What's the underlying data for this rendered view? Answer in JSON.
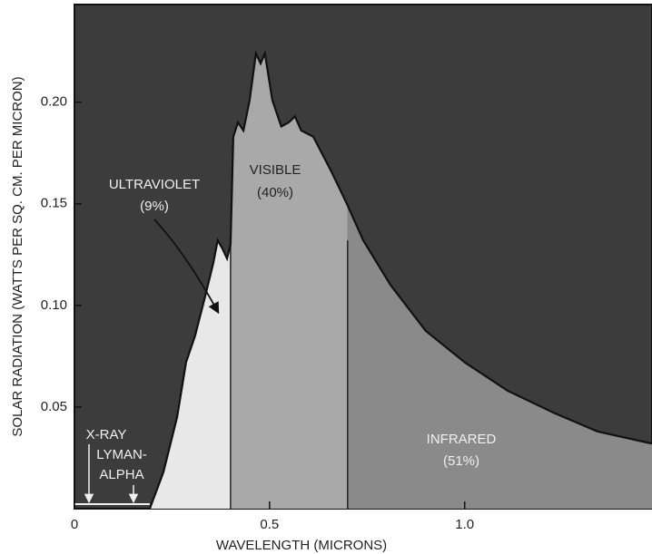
{
  "chart_data": {
    "type": "area",
    "x_label": "WAVELENGTH (MICRONS)",
    "y_label": "SOLAR RADIATION (WATTS PER SQ. CM. PER MICRON)",
    "xlim": [
      0,
      1.48
    ],
    "ylim": [
      0,
      0.248
    ],
    "xticks": [
      0,
      0.5,
      {
        "value": 1,
        "label": "1.0"
      }
    ],
    "yticks": [
      0.05,
      {
        "value": 0.1,
        "label": "0.10"
      },
      0.15,
      {
        "value": 0.2,
        "label": "0.20"
      }
    ],
    "background": "#3c3c3c",
    "line_color": "#111111",
    "series": [
      {
        "name": "solar radiation",
        "x": [
          0.193,
          0.228,
          0.263,
          0.286,
          0.309,
          0.333,
          0.356,
          0.367,
          0.379,
          0.391,
          0.4,
          0.407,
          0.419,
          0.433,
          0.449,
          0.465,
          0.477,
          0.488,
          0.507,
          0.53,
          0.549,
          0.565,
          0.581,
          0.612,
          0.658,
          0.698,
          0.74,
          0.81,
          0.9,
          1.0,
          1.11,
          1.23,
          1.34,
          1.48
        ],
        "values": [
          0,
          0.018,
          0.045,
          0.072,
          0.085,
          0.103,
          0.121,
          0.132,
          0.128,
          0.123,
          0.13,
          0.183,
          0.19,
          0.186,
          0.201,
          0.224,
          0.219,
          0.224,
          0.201,
          0.188,
          0.19,
          0.193,
          0.186,
          0.183,
          0.166,
          0.15,
          0.132,
          0.11,
          0.0875,
          0.072,
          0.058,
          0.047,
          0.038,
          0.032
        ]
      }
    ],
    "regions": [
      {
        "label": [
          "ULTRAVIOLET",
          "(9%)"
        ],
        "start": 0,
        "end": 0.4,
        "color": "#e8e8e8"
      },
      {
        "label": [
          "VISIBLE",
          "(40%)"
        ],
        "start": 0.4,
        "end": 0.7,
        "color": "#a9a9a9"
      },
      {
        "label": [
          "INFRARED",
          "(51%)"
        ],
        "start": 0.7,
        "end": 1.48,
        "color": "#8a8a8a"
      }
    ],
    "annotations": [
      "X-RAY",
      "LYMAN-",
      "ALPHA"
    ]
  }
}
